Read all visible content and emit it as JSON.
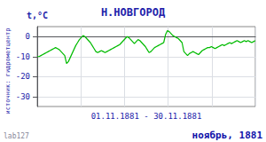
{
  "chart_data": {
    "type": "line",
    "title": "Н.НОВГОРОД",
    "ylabel": "t,°C",
    "xlabel": "01.11.1881 - 30.11.1881",
    "annotations": [
      "ноябрь, 1881",
      "источник: гидрометцентр",
      "lab127"
    ],
    "x": [
      0,
      0.2521,
      0.5042,
      0.7563,
      1.0084,
      1.2605,
      1.5126,
      1.7647,
      2.0168,
      2.2689,
      2.521,
      2.7731,
      3.0252,
      3.2773,
      3.5294,
      3.7815,
      4.0336,
      4.2857,
      4.5378,
      4.7899,
      5.042,
      5.2941,
      5.5462,
      5.7983,
      6.0504,
      6.3025,
      6.5546,
      6.8067,
      7.0588,
      7.3109,
      7.563,
      7.8151,
      8.0672,
      8.3193,
      8.5714,
      8.8235,
      9.0756,
      9.3277,
      9.5798,
      9.8319,
      10.084,
      10.3361,
      10.5882,
      10.8403,
      11.0924,
      11.3445,
      11.5966,
      11.8487,
      12.1008,
      12.3529,
      12.605,
      12.8571,
      13.1092,
      13.3613,
      13.6134,
      13.8655,
      14.1176,
      14.3697,
      14.6218,
      14.8739,
      15.1261,
      15.3782,
      15.6303,
      15.8824,
      16.1345,
      16.3866,
      16.6387,
      16.8908,
      17.1429,
      17.395,
      17.6471,
      17.8992,
      18.1513,
      18.4034,
      18.6555,
      18.9076,
      19.1597,
      19.4118,
      19.6639,
      19.916,
      20.1681,
      20.4202,
      20.6723,
      20.9244,
      21.1765,
      21.4286,
      21.6807,
      21.9328,
      22.1849,
      22.437,
      22.6891,
      22.9412,
      23.1933,
      23.4454,
      23.6975,
      23.9496,
      24.2017,
      24.4538,
      24.7059,
      24.958,
      25.2101,
      25.4622,
      25.7143,
      25.9664,
      26.2185,
      26.4706,
      26.7227,
      26.9748,
      27.2269,
      27.479,
      27.7311,
      27.9832,
      28.2353,
      28.4874,
      28.7395,
      28.9916,
      29.2437,
      29.4958,
      29.7479,
      30
    ],
    "values": [
      -10.0,
      -10.0,
      -9.5,
      -9.0,
      -8.5,
      -8.0,
      -7.5,
      -7.0,
      -6.5,
      -6.0,
      -5.5,
      -6.0,
      -6.5,
      -7.5,
      -8.5,
      -9.5,
      -13.5,
      -12.5,
      -10.5,
      -8.5,
      -6.5,
      -4.5,
      -3.0,
      -1.5,
      -0.5,
      0.5,
      0.0,
      -1.0,
      -2.0,
      -3.0,
      -4.5,
      -6.0,
      -7.5,
      -8.0,
      -7.5,
      -7.0,
      -7.5,
      -8.0,
      -7.5,
      -7.0,
      -6.5,
      -6.0,
      -5.5,
      -5.0,
      -4.5,
      -4.0,
      -3.0,
      -2.0,
      -1.0,
      0.0,
      -0.5,
      -1.5,
      -2.5,
      -3.5,
      -2.5,
      -1.5,
      -2.0,
      -3.0,
      -4.0,
      -5.0,
      -6.5,
      -8.0,
      -7.5,
      -6.5,
      -5.5,
      -5.0,
      -4.5,
      -4.0,
      -3.5,
      -3.0,
      1.0,
      3.0,
      2.5,
      1.5,
      0.5,
      0.0,
      -0.5,
      -1.0,
      -2.0,
      -3.0,
      -7.5,
      -8.5,
      -9.5,
      -8.5,
      -8.0,
      -7.5,
      -8.0,
      -8.5,
      -9.0,
      -8.0,
      -7.0,
      -6.5,
      -6.0,
      -5.5,
      -5.5,
      -5.0,
      -5.5,
      -6.0,
      -5.5,
      -5.0,
      -4.5,
      -4.0,
      -4.5,
      -4.0,
      -3.5,
      -3.0,
      -3.5,
      -3.0,
      -2.5,
      -2.0,
      -2.5,
      -3.0,
      -2.5,
      -2.0,
      -2.5,
      -2.0,
      -2.5,
      -3.0,
      -2.5,
      -2.0
    ],
    "color": "#00bb00",
    "xlim": [
      0,
      30
    ],
    "xticks": [
      0,
      6,
      12,
      18,
      24,
      30
    ],
    "ylim": [
      -35,
      5
    ],
    "yticks": [
      0,
      -10,
      -20,
      -30
    ],
    "grid": true,
    "tick_labels": "y"
  }
}
